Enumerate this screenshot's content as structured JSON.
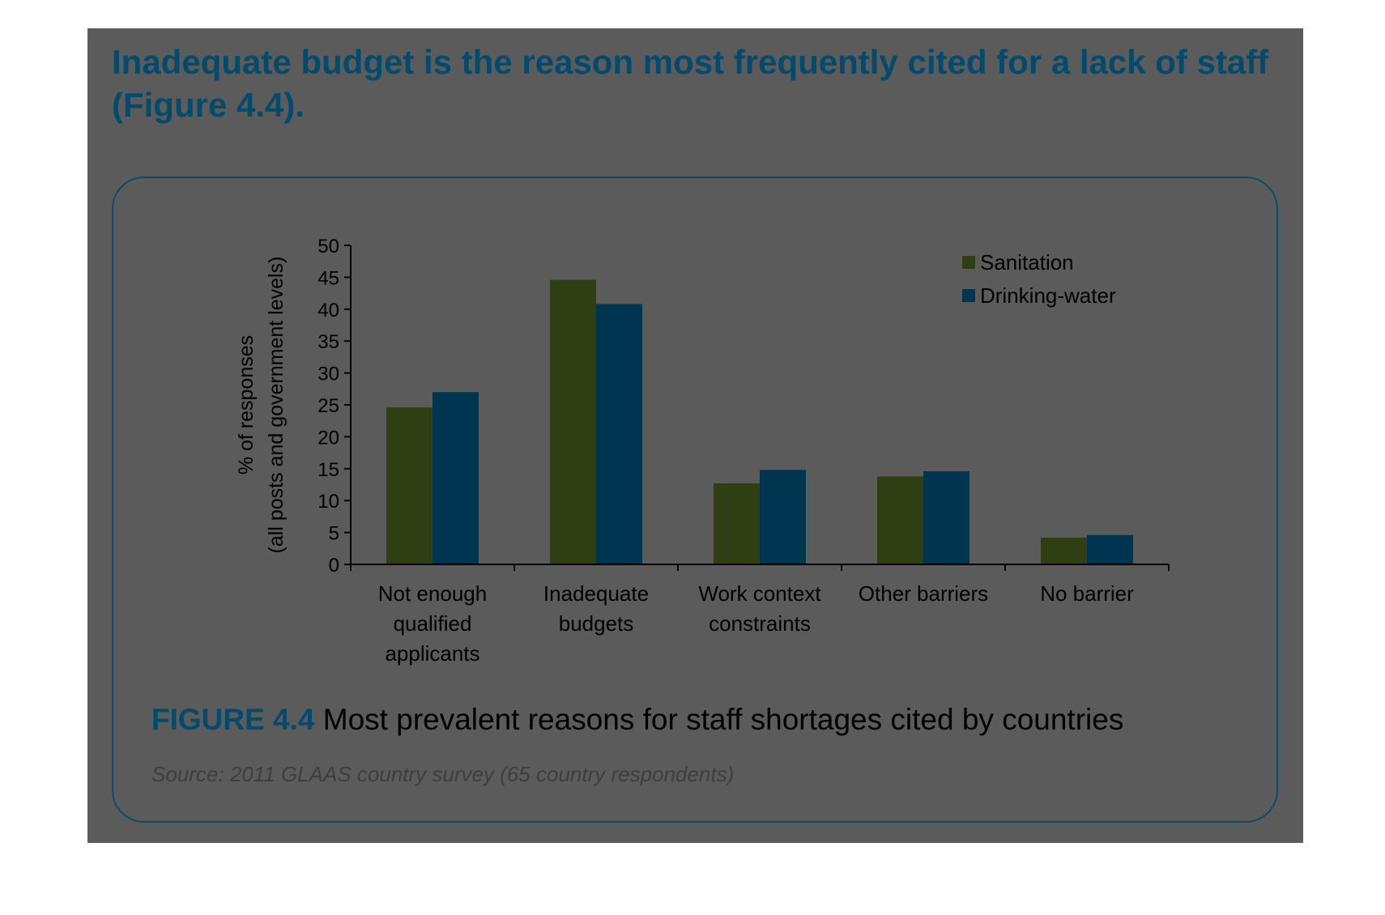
{
  "headline": "Inadequate budget is the reason most frequently cited for a lack of staff (Figure 4.4).",
  "figure": {
    "label": "FIGURE 4.4",
    "caption": "Most prevalent reasons for staff shortages cited by countries",
    "source": "Source: 2011 GLAAS country survey (65 country respondents)"
  },
  "colors": {
    "background": "#5b5b5b",
    "headline": "#004a6e",
    "sanitation": "#2f3e13",
    "drinking_water": "#003550",
    "sanitation_highlight": "#ccff44",
    "drinking_water_highlight": "#00e0ff",
    "frame": "#0a4a6a"
  },
  "chart_data": {
    "type": "bar",
    "title": "",
    "xlabel": "",
    "ylabel": "% of responses (all posts and government levels)",
    "ylabel_lines": [
      "% of responses",
      "(all posts and government levels)"
    ],
    "ylim": [
      0,
      50
    ],
    "yticks": [
      0,
      5,
      10,
      15,
      20,
      25,
      30,
      35,
      40,
      45,
      50
    ],
    "grid": false,
    "legend_position": "top-right",
    "categories": [
      [
        "Not enough",
        "qualified",
        "applicants"
      ],
      [
        "Inadequate",
        "budgets"
      ],
      [
        "Work context",
        "constraints"
      ],
      [
        "Other barriers"
      ],
      [
        "No barrier"
      ]
    ],
    "series": [
      {
        "name": "Sanitation",
        "values": [
          24.6,
          44.6,
          12.7,
          13.8,
          4.2
        ]
      },
      {
        "name": "Drinking-water",
        "values": [
          27.0,
          40.8,
          14.8,
          14.6,
          4.6
        ]
      }
    ]
  }
}
